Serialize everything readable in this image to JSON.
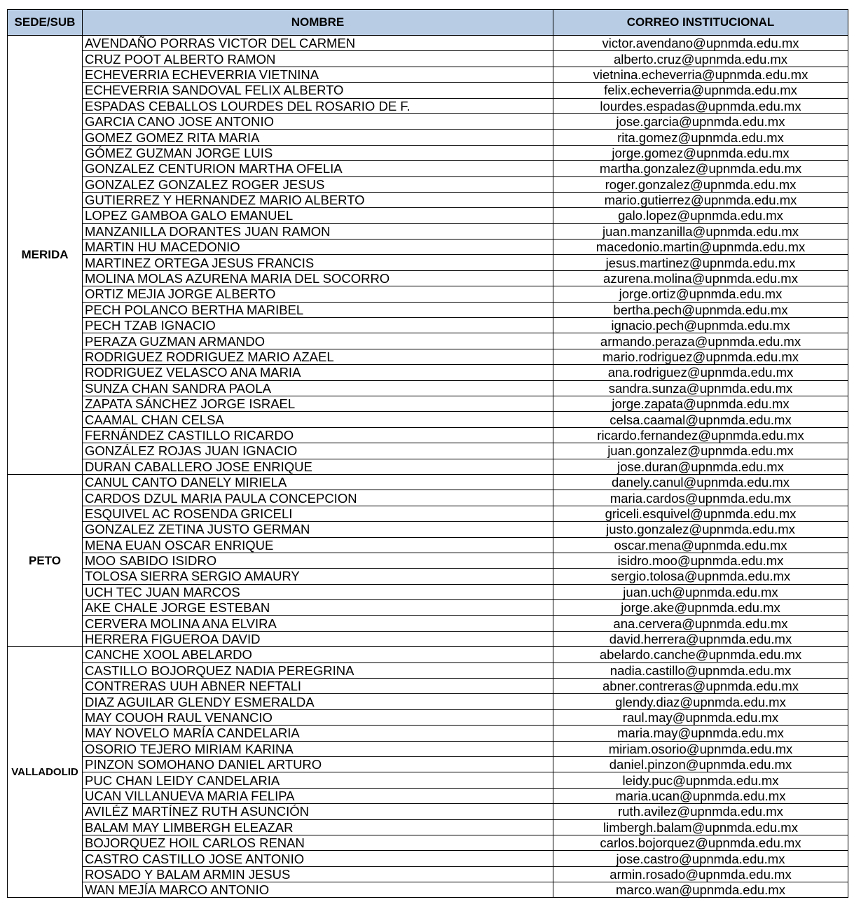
{
  "headers": {
    "sede": "SEDE/SUB",
    "nombre": "NOMBRE",
    "correo": "CORREO INSTITUCIONAL"
  },
  "groups": [
    {
      "sede": "MERIDA",
      "rows": [
        {
          "nombre": "AVENDAÑO PORRAS VICTOR DEL CARMEN",
          "correo": "victor.avendano@upnmda.edu.mx"
        },
        {
          "nombre": "CRUZ POOT ALBERTO RAMON",
          "correo": "alberto.cruz@upnmda.edu.mx"
        },
        {
          "nombre": "ECHEVERRIA ECHEVERRIA VIETNINA",
          "correo": "vietnina.echeverria@upnmda.edu.mx"
        },
        {
          "nombre": "ECHEVERRIA SANDOVAL FELIX ALBERTO",
          "correo": "felix.echeverria@upnmda.edu.mx"
        },
        {
          "nombre": "ESPADAS CEBALLOS LOURDES DEL ROSARIO DE F.",
          "correo": "lourdes.espadas@upnmda.edu.mx"
        },
        {
          "nombre": "GARCIA CANO JOSE ANTONIO",
          "correo": "jose.garcia@upnmda.edu.mx"
        },
        {
          "nombre": "GOMEZ GOMEZ RITA MARIA",
          "correo": "rita.gomez@upnmda.edu.mx"
        },
        {
          "nombre": "GÓMEZ GUZMAN JORGE LUIS",
          "correo": "jorge.gomez@upnmda.edu.mx"
        },
        {
          "nombre": "GONZALEZ CENTURION MARTHA OFELIA",
          "correo": "martha.gonzalez@upnmda.edu.mx"
        },
        {
          "nombre": "GONZALEZ GONZALEZ ROGER JESUS",
          "correo": "roger.gonzalez@upnmda.edu.mx"
        },
        {
          "nombre": "GUTIERREZ Y HERNANDEZ MARIO ALBERTO",
          "correo": "mario.gutierrez@upnmda.edu.mx"
        },
        {
          "nombre": "LOPEZ GAMBOA GALO EMANUEL",
          "correo": "galo.lopez@upnmda.edu.mx"
        },
        {
          "nombre": "MANZANILLA DORANTES JUAN RAMON",
          "correo": "juan.manzanilla@upnmda.edu.mx"
        },
        {
          "nombre": "MARTIN HU MACEDONIO",
          "correo": "macedonio.martin@upnmda.edu.mx"
        },
        {
          "nombre": "MARTINEZ ORTEGA JESUS FRANCIS",
          "correo": "jesus.martinez@upnmda.edu.mx"
        },
        {
          "nombre": "MOLINA MOLAS AZURENA MARIA DEL SOCORRO",
          "correo": "azurena.molina@upnmda.edu.mx"
        },
        {
          "nombre": "ORTIZ MEJIA JORGE ALBERTO",
          "correo": "jorge.ortiz@upnmda.edu.mx"
        },
        {
          "nombre": "PECH POLANCO BERTHA MARIBEL",
          "correo": "bertha.pech@upnmda.edu.mx"
        },
        {
          "nombre": "PECH TZAB IGNACIO",
          "correo": "ignacio.pech@upnmda.edu.mx"
        },
        {
          "nombre": "PERAZA GUZMAN ARMANDO",
          "correo": "armando.peraza@upnmda.edu.mx"
        },
        {
          "nombre": "RODRIGUEZ RODRIGUEZ MARIO AZAEL",
          "correo": "mario.rodriguez@upnmda.edu.mx"
        },
        {
          "nombre": "RODRIGUEZ VELASCO ANA MARIA",
          "correo": "ana.rodriguez@upnmda.edu.mx"
        },
        {
          "nombre": "SUNZA CHAN SANDRA PAOLA",
          "correo": "sandra.sunza@upnmda.edu.mx"
        },
        {
          "nombre": "ZAPATA SÁNCHEZ JORGE ISRAEL",
          "correo": "jorge.zapata@upnmda.edu.mx"
        },
        {
          "nombre": "CAAMAL CHAN CELSA",
          "correo": "celsa.caamal@upnmda.edu.mx"
        },
        {
          "nombre": "FERNÁNDEZ CASTILLO RICARDO",
          "correo": "ricardo.fernandez@upnmda.edu.mx"
        },
        {
          "nombre": "GONZÁLEZ ROJAS JUAN IGNACIO",
          "correo": "juan.gonzalez@upnmda.edu.mx"
        },
        {
          "nombre": "DURAN CABALLERO JOSE ENRIQUE",
          "correo": "jose.duran@upnmda.edu.mx"
        }
      ]
    },
    {
      "sede": "PETO",
      "rows": [
        {
          "nombre": "CANUL CANTO DANELY MIRIELA",
          "correo": "danely.canul@upnmda.edu.mx"
        },
        {
          "nombre": "CARDOS DZUL MARIA PAULA CONCEPCION",
          "correo": "maria.cardos@upnmda.edu.mx"
        },
        {
          "nombre": "ESQUIVEL AC ROSENDA GRICELI",
          "correo": "griceli.esquivel@upnmda.edu.mx"
        },
        {
          "nombre": "GONZALEZ ZETINA JUSTO GERMAN",
          "correo": "justo.gonzalez@upnmda.edu.mx"
        },
        {
          "nombre": "MENA EUAN OSCAR ENRIQUE",
          "correo": "oscar.mena@upnmda.edu.mx"
        },
        {
          "nombre": "MOO SABIDO ISIDRO",
          "correo": "isidro.moo@upnmda.edu.mx"
        },
        {
          "nombre": "TOLOSA SIERRA SERGIO AMAURY",
          "correo": "sergio.tolosa@upnmda.edu.mx"
        },
        {
          "nombre": "UCH TEC  JUAN MARCOS",
          "correo": "juan.uch@upnmda.edu.mx"
        },
        {
          "nombre": "AKE CHALE JORGE ESTEBAN",
          "correo": "jorge.ake@upnmda.edu.mx"
        },
        {
          "nombre": "CERVERA MOLINA ANA ELVIRA",
          "correo": "ana.cervera@upnmda.edu.mx"
        },
        {
          "nombre": "HERRERA FIGUEROA DAVID",
          "correo": "david.herrera@upnmda.edu.mx"
        }
      ]
    },
    {
      "sede": "VALLADOLID",
      "rows": [
        {
          "nombre": "CANCHE XOOL ABELARDO",
          "correo": "abelardo.canche@upnmda.edu.mx"
        },
        {
          "nombre": "CASTILLO BOJORQUEZ NADIA PEREGRINA",
          "correo": "nadia.castillo@upnmda.edu.mx"
        },
        {
          "nombre": "CONTRERAS UUH ABNER NEFTALI",
          "correo": "abner.contreras@upnmda.edu.mx"
        },
        {
          "nombre": "DIAZ AGUILAR GLENDY ESMERALDA",
          "correo": "glendy.diaz@upnmda.edu.mx"
        },
        {
          "nombre": "MAY COUOH RAUL VENANCIO",
          "correo": "raul.may@upnmda.edu.mx"
        },
        {
          "nombre": "MAY NOVELO MARÍA CANDELARIA",
          "correo": "maria.may@upnmda.edu.mx"
        },
        {
          "nombre": "OSORIO TEJERO MIRIAM KARINA",
          "correo": "miriam.osorio@upnmda.edu.mx"
        },
        {
          "nombre": "PINZON SOMOHANO DANIEL ARTURO",
          "correo": "daniel.pinzon@upnmda.edu.mx"
        },
        {
          "nombre": "PUC CHAN LEIDY CANDELARIA",
          "correo": "leidy.puc@upnmda.edu.mx"
        },
        {
          "nombre": "UCAN VILLANUEVA MARIA FELIPA",
          "correo": "maria.ucan@upnmda.edu.mx"
        },
        {
          "nombre": "AVILÉZ MARTÍNEZ RUTH ASUNCIÓN",
          "correo": "ruth.avilez@upnmda.edu.mx"
        },
        {
          "nombre": "BALAM MAY LIMBERGH ELEAZAR",
          "correo": "limbergh.balam@upnmda.edu.mx"
        },
        {
          "nombre": "BOJORQUEZ HOIL CARLOS RENAN",
          "correo": "carlos.bojorquez@upnmda.edu.mx"
        },
        {
          "nombre": "CASTRO CASTILLO JOSE ANTONIO",
          "correo": "jose.castro@upnmda.edu.mx"
        },
        {
          "nombre": "ROSADO Y BALAM ARMIN JESUS",
          "correo": "armin.rosado@upnmda.edu.mx"
        },
        {
          "nombre": "WAN MEJÍA MARCO ANTONIO",
          "correo": "marco.wan@upnmda.edu.mx"
        }
      ]
    }
  ]
}
